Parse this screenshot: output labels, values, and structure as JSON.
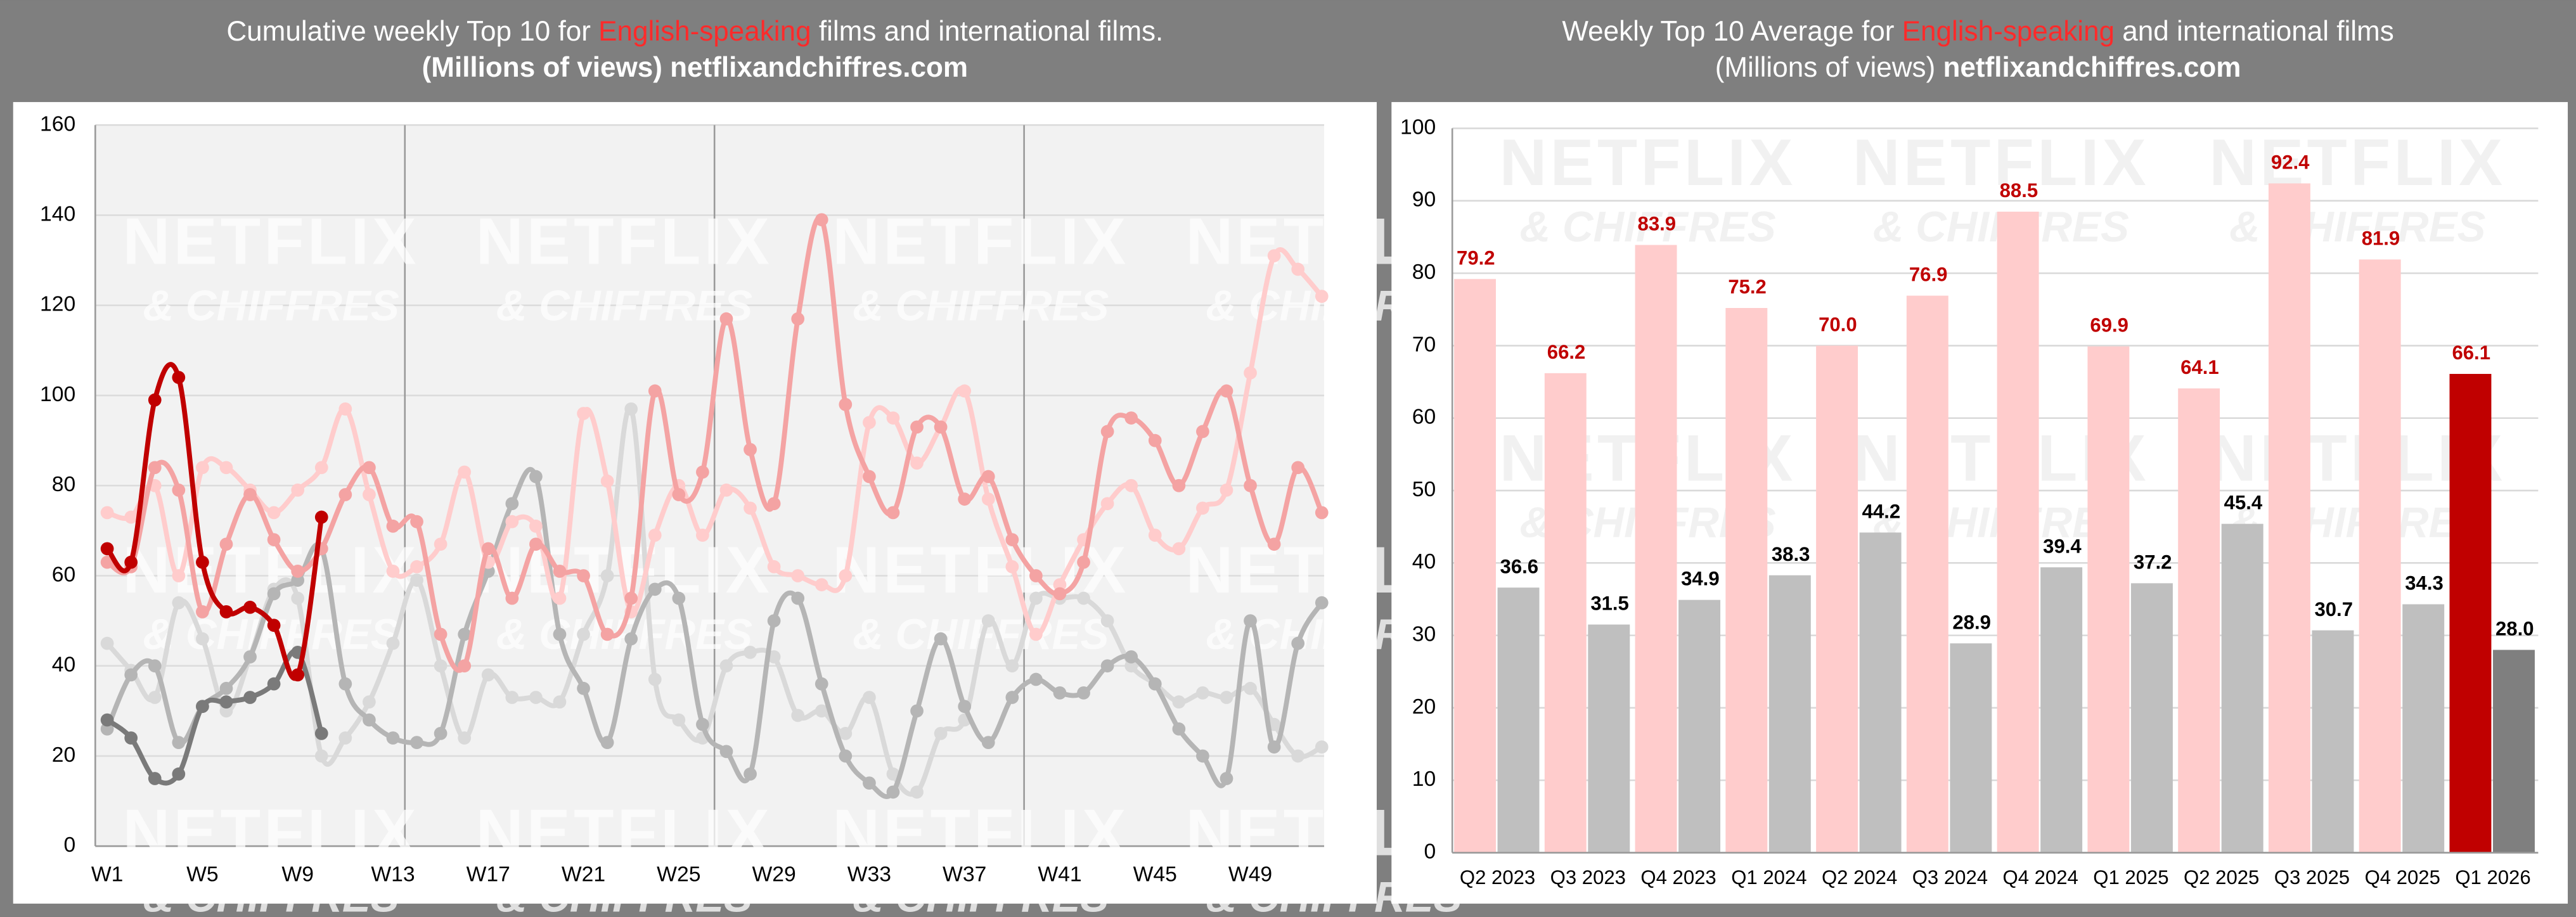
{
  "chart_data": [
    {
      "type": "line",
      "title": [
        "Cumulative weekly Top 10 for ",
        "English-speaking",
        " films and international films."
      ],
      "title_colors": [
        "#ffffff",
        "#ff2a2a",
        "#ffffff"
      ],
      "subtitle": [
        "(Millions of views) netflixandchiffres.com"
      ],
      "subtitle_weights": [
        "bold"
      ],
      "watermark": [
        "NETFLIX",
        "& CHIFFRES"
      ],
      "x": [
        1,
        2,
        3,
        4,
        5,
        6,
        7,
        8,
        9,
        10,
        11,
        12,
        13,
        14,
        15,
        16,
        17,
        18,
        19,
        20,
        21,
        22,
        23,
        24,
        25,
        26,
        27,
        28,
        29,
        30,
        31,
        32,
        33,
        34,
        35,
        36,
        37,
        38,
        39,
        40,
        41,
        42,
        43,
        44,
        45,
        46,
        47,
        48,
        49,
        50,
        51,
        52
      ],
      "xlim": [
        0.5,
        52.1
      ],
      "xticks": [
        {
          "value": 1,
          "label": "W1"
        },
        {
          "value": 5,
          "label": "W5"
        },
        {
          "value": 9,
          "label": "W9"
        },
        {
          "value": 13,
          "label": "W13"
        },
        {
          "value": 17,
          "label": "W17"
        },
        {
          "value": 21,
          "label": "W21"
        },
        {
          "value": 25,
          "label": "W25"
        },
        {
          "value": 29,
          "label": "W29"
        },
        {
          "value": 33,
          "label": "W33"
        },
        {
          "value": 37,
          "label": "W37"
        },
        {
          "value": 41,
          "label": "W41"
        },
        {
          "value": 45,
          "label": "W45"
        },
        {
          "value": 49,
          "label": "W49"
        }
      ],
      "vlines": [
        13.5,
        26.5,
        39.5
      ],
      "ylim": [
        0,
        160
      ],
      "yticks": [
        0,
        20,
        40,
        60,
        80,
        100,
        120,
        140,
        160
      ],
      "grid": true,
      "series": [
        {
          "color": "#d9d9d9",
          "values": [
            45,
            39,
            33,
            54,
            46,
            30,
            42,
            57,
            55,
            20,
            24,
            32,
            45,
            59,
            40,
            24,
            38,
            33,
            33,
            32,
            47,
            60,
            97,
            37,
            28,
            24,
            40,
            43,
            42,
            29,
            30,
            25,
            33,
            16,
            12,
            25,
            28,
            50,
            40,
            55,
            55,
            55,
            50,
            40,
            36,
            32,
            34,
            33,
            35,
            27,
            20,
            22
          ]
        },
        {
          "color": "#b5b5b5",
          "values": [
            26,
            38,
            40,
            23,
            31,
            35,
            42,
            56,
            59,
            66,
            36,
            28,
            24,
            23,
            25,
            47,
            61,
            76,
            82,
            47,
            35,
            23,
            46,
            57,
            55,
            27,
            21,
            16,
            50,
            55,
            36,
            20,
            14,
            12,
            30,
            46,
            31,
            23,
            33,
            37,
            34,
            34,
            40,
            42,
            36,
            26,
            20,
            15,
            50,
            22,
            45,
            54
          ]
        },
        {
          "color": "#ffcccc",
          "values": [
            74,
            73,
            80,
            60,
            84,
            84,
            79,
            74,
            79,
            84,
            97,
            78,
            61,
            62,
            67,
            83,
            63,
            72,
            71,
            55,
            96,
            81,
            52,
            69,
            80,
            69,
            79,
            75,
            62,
            60,
            58,
            60,
            94,
            95,
            85,
            93,
            101,
            77,
            62,
            47,
            58,
            68,
            76,
            80,
            69,
            66,
            75,
            79,
            105,
            131,
            128,
            122
          ]
        },
        {
          "color": "#f4a3a3",
          "values": [
            63,
            62,
            84,
            79,
            52,
            67,
            78,
            68,
            61,
            66,
            78,
            84,
            71,
            72,
            47,
            40,
            66,
            55,
            67,
            61,
            60,
            47,
            55,
            101,
            78,
            83,
            117,
            88,
            76,
            117,
            139,
            98,
            82,
            74,
            93,
            93,
            77,
            82,
            68,
            60,
            56,
            63,
            92,
            95,
            90,
            80,
            92,
            101,
            80,
            67,
            84,
            74
          ]
        },
        {
          "color": "#7a7a7a",
          "values": [
            28,
            24,
            15,
            16,
            31,
            32,
            33,
            36,
            43,
            25,
            null,
            null,
            null,
            null,
            null,
            null,
            null,
            null,
            null,
            null,
            null,
            null,
            null,
            null,
            null,
            null,
            null,
            null,
            null,
            null,
            null,
            null,
            null,
            null,
            null,
            null,
            null,
            null,
            null,
            null,
            null,
            null,
            null,
            null,
            null,
            null,
            null,
            null,
            null,
            null,
            null,
            null
          ]
        },
        {
          "color": "#c00000",
          "values": [
            66,
            63,
            99,
            104,
            63,
            52,
            53,
            49,
            38,
            73,
            null,
            null,
            null,
            null,
            null,
            null,
            null,
            null,
            null,
            null,
            null,
            null,
            null,
            null,
            null,
            null,
            null,
            null,
            null,
            null,
            null,
            null,
            null,
            null,
            null,
            null,
            null,
            null,
            null,
            null,
            null,
            null,
            null,
            null,
            null,
            null,
            null,
            null,
            null,
            null,
            null,
            null
          ]
        }
      ]
    },
    {
      "type": "bar",
      "title": [
        "Weekly Top 10 Average for ",
        "English-speaking",
        " and international films"
      ],
      "title_colors": [
        "#ffffff",
        "#ff2a2a",
        "#ffffff"
      ],
      "subtitle": [
        "(Millions of views) ",
        "netflixandchiffres.com"
      ],
      "subtitle_weights": [
        "normal",
        "bold"
      ],
      "watermark": [
        "NETFLIX",
        "& CHIFFRES"
      ],
      "categories": [
        "Q2 2023",
        "Q3 2023",
        "Q4 2023",
        "Q1 2024",
        "Q2 2024",
        "Q3 2024",
        "Q4 2024",
        "Q1 2025",
        "Q2 2025",
        "Q3 2025",
        "Q4 2025",
        "Q1 2026"
      ],
      "ylim": [
        0,
        100
      ],
      "yticks": [
        0,
        10,
        20,
        30,
        40,
        50,
        60,
        70,
        80,
        90,
        100
      ],
      "grid": true,
      "series": [
        {
          "colors": [
            "#ffcccc",
            "#ffcccc",
            "#ffcccc",
            "#ffcccc",
            "#ffcccc",
            "#ffcccc",
            "#ffcccc",
            "#ffcccc",
            "#ffcccc",
            "#ffcccc",
            "#ffcccc",
            "#c00000"
          ],
          "label_color": "#c00000",
          "values": [
            79.2,
            66.2,
            83.9,
            75.2,
            70.0,
            76.9,
            88.5,
            69.9,
            64.1,
            92.4,
            81.9,
            66.1
          ],
          "value_labels": [
            "79.2",
            "66.2",
            "83.9",
            "75.2",
            "70.0",
            "76.9",
            "88.5",
            "69.9",
            "64.1",
            "92.4",
            "81.9",
            "66.1"
          ]
        },
        {
          "colors": [
            "#bfbfbf",
            "#bfbfbf",
            "#bfbfbf",
            "#bfbfbf",
            "#bfbfbf",
            "#bfbfbf",
            "#bfbfbf",
            "#bfbfbf",
            "#bfbfbf",
            "#bfbfbf",
            "#bfbfbf",
            "#7f7f7f"
          ],
          "label_color": "#000000",
          "values": [
            36.6,
            31.5,
            34.9,
            38.3,
            44.2,
            28.9,
            39.4,
            37.2,
            45.4,
            30.7,
            34.3,
            28.0
          ],
          "value_labels": [
            "36.6",
            "31.5",
            "34.9",
            "38.3",
            "44.2",
            "28.9",
            "39.4",
            "37.2",
            "45.4",
            "30.7",
            "34.3",
            "28.0"
          ]
        }
      ]
    }
  ]
}
